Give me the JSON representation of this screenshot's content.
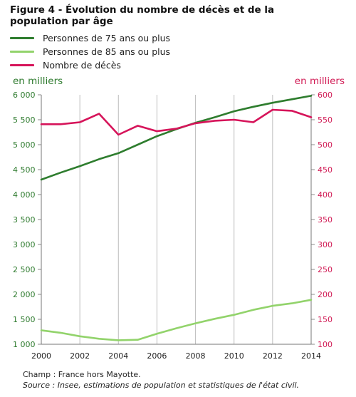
{
  "title": "Figure 4 - Évolution du nombre de décès et de la population par âge",
  "colors": {
    "series_75": "#2e7d2e",
    "series_85": "#92d36b",
    "deces": "#d6145a",
    "axis_left": "#2d7a2d",
    "axis_right": "#d11a54",
    "grid": "#bdbdbd"
  },
  "units": {
    "left": "en milliers",
    "right": "en milliers"
  },
  "footer": {
    "champ": "Champ : France hors Mayotte.",
    "source": "Source : Insee, estimations de population et statistiques de l'état civil."
  },
  "chart_data": {
    "type": "line",
    "x": [
      2000,
      2001,
      2002,
      2003,
      2004,
      2005,
      2006,
      2007,
      2008,
      2009,
      2010,
      2011,
      2012,
      2013,
      2014
    ],
    "x_ticks": [
      "2000",
      "2002",
      "2004",
      "2006",
      "2008",
      "2010",
      "2012",
      "2014"
    ],
    "y_left_ticks": [
      "1 000",
      "1 500",
      "2 000",
      "2 500",
      "3 000",
      "3 500",
      "4 000",
      "4 500",
      "5 000",
      "5 500",
      "6 000"
    ],
    "y_right_ticks": [
      "100",
      "150",
      "200",
      "250",
      "300",
      "350",
      "400",
      "450",
      "500",
      "550",
      "600"
    ],
    "ylim_left": [
      1000,
      6000
    ],
    "ylim_right": [
      100,
      600
    ],
    "grid": "vertical",
    "legend_position": "top-left",
    "series": [
      {
        "name": "Personnes de 75 ans ou plus",
        "axis": "left",
        "color_key": "series_75",
        "values": [
          4300,
          4440,
          4570,
          4710,
          4830,
          5000,
          5170,
          5310,
          5440,
          5550,
          5670,
          5760,
          5840,
          5910,
          5980
        ]
      },
      {
        "name": "Personnes de 85 ans ou plus",
        "axis": "left",
        "color_key": "series_85",
        "values": [
          1280,
          1230,
          1160,
          1110,
          1080,
          1090,
          1210,
          1320,
          1420,
          1510,
          1590,
          1690,
          1770,
          1820,
          1890
        ]
      },
      {
        "name": "Nombre de décès",
        "axis": "right",
        "color_key": "deces",
        "values": [
          541,
          541,
          545,
          562,
          520,
          538,
          527,
          532,
          543,
          548,
          550,
          545,
          570,
          568,
          555
        ]
      }
    ]
  }
}
